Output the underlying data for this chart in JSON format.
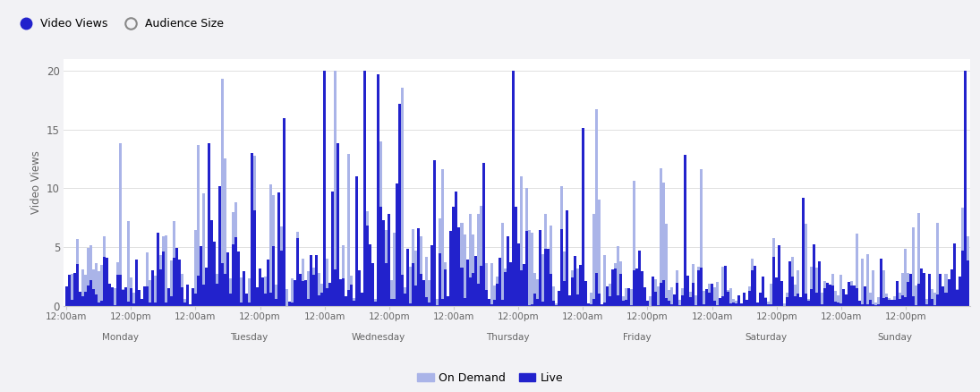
{
  "ylabel": "Video Views",
  "ylim": [
    0,
    21
  ],
  "yticks": [
    0,
    5,
    10,
    15,
    20
  ],
  "days": [
    "Monday",
    "Tuesday",
    "Wednesday",
    "Thursday",
    "Friday",
    "Saturday",
    "Sunday"
  ],
  "n_per_day": 48,
  "background_color": "#f2f2f5",
  "plot_bg_color": "#ffffff",
  "color_ondemand": "#aab4e8",
  "color_live": "#2222cc",
  "top_legend": [
    {
      "label": "Video Views",
      "facecolor": "#2222cc",
      "edgecolor": "#2222cc",
      "open": false
    },
    {
      "label": "Audience Size",
      "facecolor": "none",
      "edgecolor": "#888888",
      "open": true
    }
  ],
  "bottom_legend": [
    {
      "label": "On Demand",
      "color": "#aab4e8"
    },
    {
      "label": "Live",
      "color": "#2222cc"
    }
  ]
}
